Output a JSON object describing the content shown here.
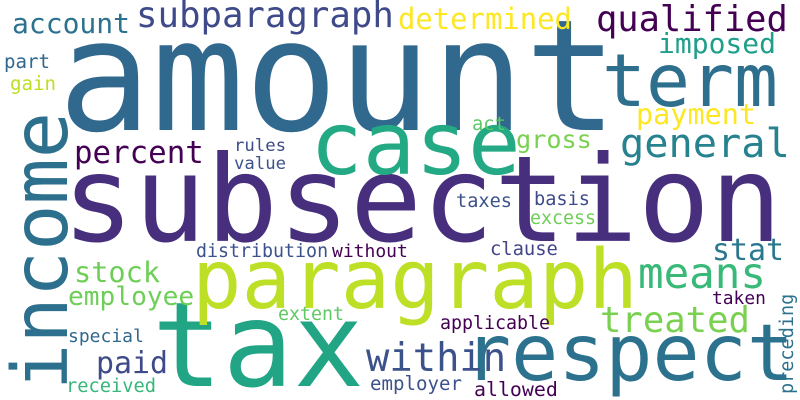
{
  "words": [
    {
      "text": "amount",
      "color": "#31688e"
    },
    {
      "text": "subsection",
      "color": "#472f7d"
    },
    {
      "text": "tax",
      "color": "#21a585"
    },
    {
      "text": "paragraph",
      "color": "#bddf26"
    },
    {
      "text": "respect",
      "color": "#2c728e"
    },
    {
      "text": "income",
      "color": "#2d708e"
    },
    {
      "text": "case",
      "color": "#23a983"
    },
    {
      "text": "term",
      "color": "#2e6f8e"
    },
    {
      "text": "general",
      "color": "#26828e"
    },
    {
      "text": "subparagraph",
      "color": "#3e4a89"
    },
    {
      "text": "qualified",
      "color": "#440154"
    },
    {
      "text": "treated",
      "color": "#7ad151"
    },
    {
      "text": "means",
      "color": "#38b977"
    },
    {
      "text": "within",
      "color": "#3b528b"
    },
    {
      "text": "stat",
      "color": "#2a788e"
    },
    {
      "text": "percent",
      "color": "#440154"
    },
    {
      "text": "account",
      "color": "#2c728e"
    },
    {
      "text": "determined",
      "color": "#fde725"
    },
    {
      "text": "imposed",
      "color": "#1f9e89"
    },
    {
      "text": "payment",
      "color": "#fde725"
    },
    {
      "text": "employee",
      "color": "#6ece58"
    },
    {
      "text": "stock",
      "color": "#6ece58"
    },
    {
      "text": "paid",
      "color": "#3e4a89"
    },
    {
      "text": "gross",
      "color": "#7ad151"
    },
    {
      "text": "taxes",
      "color": "#3b528b"
    },
    {
      "text": "basis",
      "color": "#3e4a89"
    },
    {
      "text": "excess",
      "color": "#6ece58"
    },
    {
      "text": "distribution",
      "color": "#3b528b"
    },
    {
      "text": "without",
      "color": "#440154"
    },
    {
      "text": "clause",
      "color": "#414487"
    },
    {
      "text": "applicable",
      "color": "#440154"
    },
    {
      "text": "special",
      "color": "#31688e"
    },
    {
      "text": "extent",
      "color": "#5ec962"
    },
    {
      "text": "taken",
      "color": "#440154"
    },
    {
      "text": "preceding",
      "color": "#2c728e"
    },
    {
      "text": "rules",
      "color": "#3e4a89"
    },
    {
      "text": "value",
      "color": "#3b528b"
    },
    {
      "text": "act",
      "color": "#5ec962"
    },
    {
      "text": "part",
      "color": "#31688e"
    },
    {
      "text": "gain",
      "color": "#bddf26"
    },
    {
      "text": "received",
      "color": "#35b779"
    },
    {
      "text": "employer",
      "color": "#3b528b"
    },
    {
      "text": "allowed",
      "color": "#440154"
    }
  ]
}
